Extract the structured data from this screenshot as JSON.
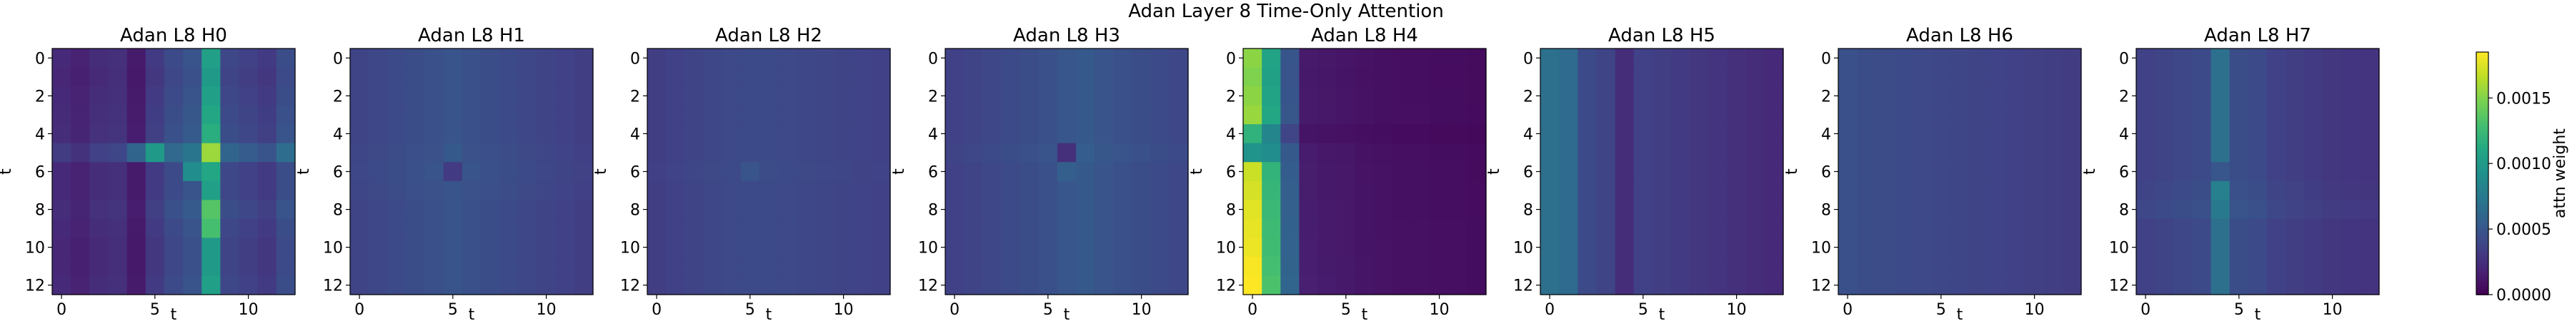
{
  "chart_data": {
    "type": "heatmap",
    "title": "Adan Layer 8 Time-Only Attention",
    "xlabel": "t",
    "ylabel": "t",
    "size": 13,
    "x_ticks": [
      0,
      5,
      10
    ],
    "y_ticks": [
      0,
      2,
      4,
      6,
      8,
      10,
      12
    ],
    "colormap": "viridis",
    "colorbar": {
      "label": "attn weight",
      "vmin": 0.0,
      "vmax": 0.00185,
      "ticks": [
        "0.0000",
        "0.0005",
        "0.0010",
        "0.0015"
      ],
      "tick_values": [
        0.0,
        0.0005,
        0.001,
        0.0015
      ]
    },
    "panels": [
      {
        "title": "Adan L8 H0",
        "col_weights": [
          0.00022,
          0.00018,
          0.00024,
          0.00026,
          0.00014,
          0.00032,
          0.00042,
          0.00048,
          0.00105,
          0.0004,
          0.00036,
          0.00032,
          0.00044
        ],
        "row_mod": [
          1.0,
          0.95,
          1.0,
          1.05,
          1.1,
          1.5,
          1.0,
          1.0,
          1.1,
          1.0,
          0.95,
          0.95,
          1.0
        ],
        "overrides": [
          [
            5,
            5,
            0.001
          ],
          [
            5,
            4,
            0.0006
          ],
          [
            6,
            7,
            0.0009
          ],
          [
            6,
            8,
            0.0011
          ],
          [
            8,
            8,
            0.00135
          ],
          [
            9,
            8,
            0.0013
          ]
        ]
      },
      {
        "title": "Adan L8 H1",
        "col_weights": [
          0.00038,
          0.0004,
          0.00042,
          0.00044,
          0.00046,
          0.00048,
          0.00046,
          0.00044,
          0.00042,
          0.0004,
          0.00038,
          0.00036,
          0.00034
        ],
        "row_mod": [
          1.0,
          1.0,
          1.0,
          1.0,
          1.0,
          1.02,
          1.05,
          1.02,
          1.0,
          1.0,
          1.0,
          1.0,
          1.0
        ],
        "overrides": [
          [
            6,
            5,
            0.00032
          ],
          [
            5,
            5,
            0.00052
          ]
        ]
      },
      {
        "title": "Adan L8 H2",
        "col_weights": [
          0.00034,
          0.00036,
          0.00038,
          0.0004,
          0.00041,
          0.00042,
          0.00042,
          0.00041,
          0.0004,
          0.00039,
          0.00038,
          0.00037,
          0.00036
        ],
        "row_mod": [
          1.0,
          1.0,
          1.0,
          1.0,
          1.0,
          1.0,
          1.02,
          1.0,
          1.0,
          1.0,
          1.0,
          1.0,
          1.0
        ],
        "overrides": [
          [
            6,
            5,
            0.00048
          ]
        ]
      },
      {
        "title": "Adan L8 H3",
        "col_weights": [
          0.00036,
          0.00038,
          0.0004,
          0.00042,
          0.00044,
          0.00046,
          0.0005,
          0.00052,
          0.00048,
          0.00046,
          0.00044,
          0.00042,
          0.0004
        ],
        "row_mod": [
          1.0,
          1.0,
          1.0,
          1.0,
          1.0,
          1.05,
          1.0,
          1.0,
          1.0,
          1.0,
          1.0,
          1.0,
          1.0
        ],
        "overrides": [
          [
            5,
            6,
            0.00026
          ],
          [
            6,
            6,
            0.00056
          ]
        ]
      },
      {
        "title": "Adan L8 H4",
        "col_weights": [
          0.0017,
          0.0012,
          0.00055,
          0.00015,
          0.00013,
          0.00012,
          0.0001,
          9e-05,
          8e-05,
          8e-05,
          7e-05,
          7e-05,
          6e-05
        ],
        "row_mod": [
          0.9,
          0.88,
          0.9,
          0.92,
          0.7,
          0.95,
          1.0,
          1.02,
          1.04,
          1.05,
          1.06,
          1.08,
          1.1
        ],
        "overrides": [
          [
            5,
            0,
            0.00095
          ],
          [
            5,
            1,
            0.0009
          ]
        ]
      },
      {
        "title": "Adan L8 H5",
        "col_weights": [
          0.00068,
          0.00065,
          0.00042,
          0.00038,
          0.00024,
          0.00036,
          0.00034,
          0.00032,
          0.0003,
          0.00028,
          0.00026,
          0.00024,
          0.00022
        ],
        "row_mod": [
          1.0,
          1.0,
          1.0,
          1.0,
          1.0,
          1.0,
          1.0,
          1.0,
          1.0,
          1.0,
          1.0,
          1.0,
          1.0
        ],
        "overrides": []
      },
      {
        "title": "Adan L8 H6",
        "col_weights": [
          0.00046,
          0.00044,
          0.00043,
          0.00042,
          0.00041,
          0.0004,
          0.00039,
          0.00038,
          0.00037,
          0.00036,
          0.00035,
          0.00034,
          0.00033
        ],
        "row_mod": [
          1.0,
          1.0,
          1.0,
          1.0,
          1.0,
          1.0,
          1.0,
          1.0,
          1.0,
          1.0,
          1.0,
          1.0,
          1.0
        ],
        "overrides": []
      },
      {
        "title": "Adan L8 H7",
        "col_weights": [
          0.00036,
          0.00038,
          0.0004,
          0.00042,
          0.00068,
          0.00044,
          0.00042,
          0.00036,
          0.00034,
          0.00032,
          0.0003,
          0.00029,
          0.00028
        ],
        "row_mod": [
          1.0,
          1.0,
          1.0,
          1.0,
          1.0,
          1.0,
          1.0,
          1.05,
          1.1,
          1.0,
          1.0,
          1.0,
          1.0
        ],
        "overrides": [
          [
            6,
            4,
            0.0005
          ],
          [
            7,
            4,
            0.0008
          ]
        ]
      }
    ]
  }
}
